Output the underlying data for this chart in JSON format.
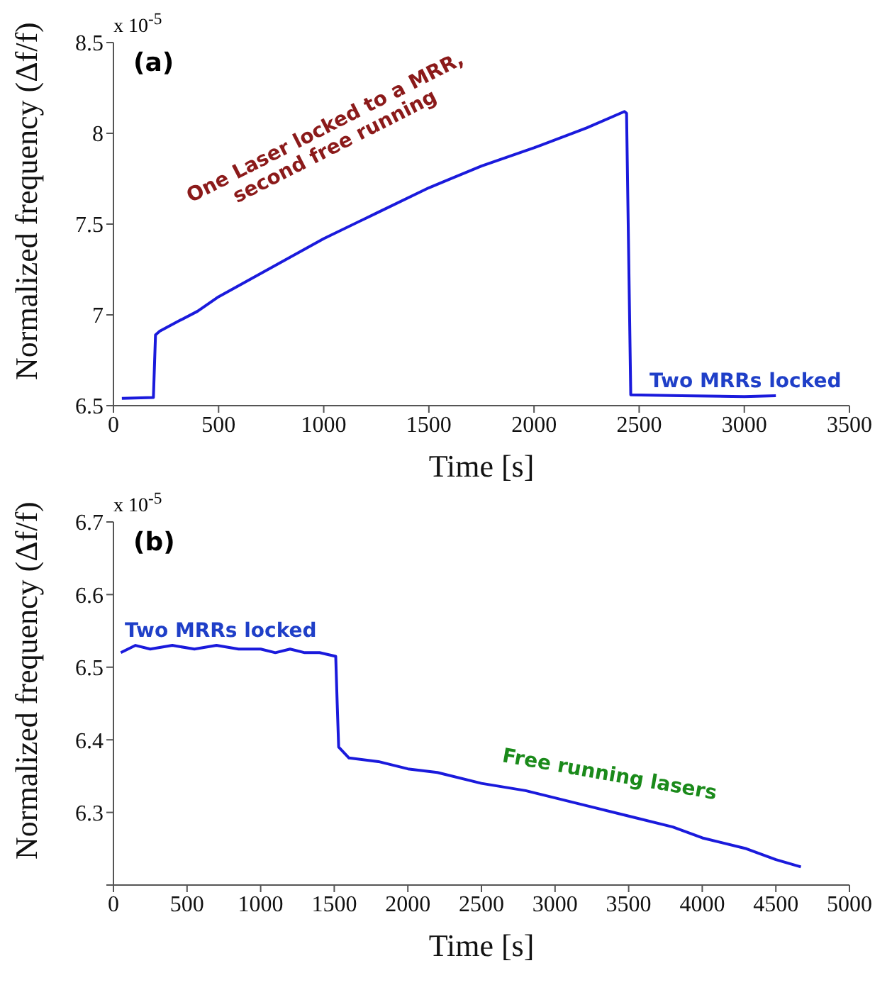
{
  "chart_data": [
    {
      "type": "line",
      "title": "(a)",
      "xlabel": "Time [s]",
      "ylabel": "Normalized frequency (Δf/f)",
      "xlim": [
        0,
        3500
      ],
      "xticks": [
        0,
        500,
        1000,
        1500,
        2000,
        2500,
        3000,
        3500
      ],
      "ylim": [
        6.5,
        8.5
      ],
      "yticks": [
        6.5,
        7,
        7.5,
        8,
        8.5
      ],
      "marker": "none",
      "line_style": "solid",
      "series": [
        {
          "color": "#1a1adc",
          "x": [
            40,
            190,
            200,
            220,
            300,
            400,
            500,
            750,
            1000,
            1250,
            1500,
            1750,
            2000,
            2250,
            2430,
            2440,
            2460,
            2700,
            3000,
            3150
          ],
          "values": [
            6.54,
            6.545,
            6.89,
            6.91,
            6.96,
            7.02,
            7.1,
            7.26,
            7.42,
            7.56,
            7.7,
            7.82,
            7.92,
            8.03,
            8.12,
            8.11,
            6.56,
            6.555,
            6.55,
            6.555
          ]
        }
      ],
      "annotations": [
        "x 10$^{-5}$",
        "One Laser locked to a MRR,\nsecond free running",
        "Two MRRs locked"
      ]
    },
    {
      "type": "line",
      "title": "(b)",
      "xlabel": "Time [s]",
      "ylabel": "Normalized frequency (Δf/f)",
      "xlim": [
        0,
        5000
      ],
      "xticks": [
        0,
        500,
        1000,
        1500,
        2000,
        2500,
        3000,
        3500,
        4000,
        4500,
        5000
      ],
      "ylim": [
        6.2,
        6.7
      ],
      "yticks": [
        {
          "value": 6.2,
          "label": null
        },
        6.3,
        6.4,
        6.5,
        6.6,
        6.7
      ],
      "marker": "none",
      "line_style": "solid",
      "series": [
        {
          "color": "#1a1adc",
          "x": [
            50,
            150,
            250,
            400,
            550,
            700,
            850,
            1000,
            1100,
            1200,
            1300,
            1400,
            1510,
            1520,
            1530,
            1600,
            1800,
            2000,
            2200,
            2500,
            2800,
            3000,
            3200,
            3500,
            3800,
            4000,
            4300,
            4500,
            4670
          ],
          "values": [
            6.52,
            6.53,
            6.525,
            6.53,
            6.525,
            6.53,
            6.525,
            6.525,
            6.52,
            6.525,
            6.52,
            6.52,
            6.515,
            6.45,
            6.39,
            6.375,
            6.37,
            6.36,
            6.355,
            6.34,
            6.33,
            6.32,
            6.31,
            6.295,
            6.28,
            6.265,
            6.25,
            6.235,
            6.225
          ]
        }
      ],
      "annotations": [
        "x 10$^{-5}$",
        "Two MRRs locked",
        "Free running lasers"
      ]
    }
  ]
}
